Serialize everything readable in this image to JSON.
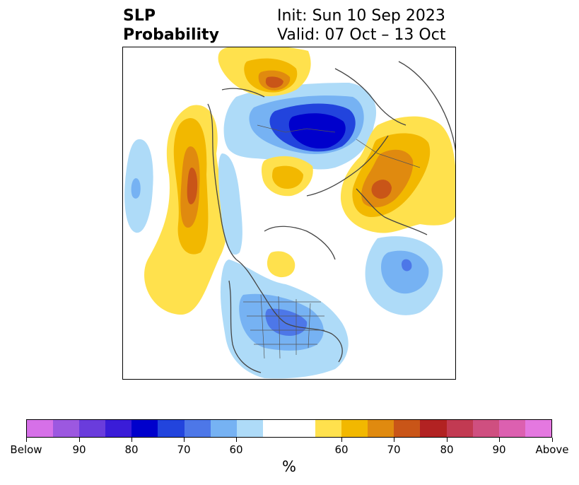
{
  "title": {
    "left_line1": "SLP",
    "left_line2": "Probability",
    "right_line1": "Init: Sun 10 Sep 2023",
    "right_line2": "Valid: 07 Oct – 13 Oct"
  },
  "colorbar": {
    "unit_label": "%",
    "segments": [
      {
        "color": "#d670e8"
      },
      {
        "color": "#9c58e0"
      },
      {
        "color": "#6a3cdc"
      },
      {
        "color": "#3a1cd8"
      },
      {
        "color": "#0000cc"
      },
      {
        "color": "#2244dd"
      },
      {
        "color": "#4d77e8"
      },
      {
        "color": "#76b2f3"
      },
      {
        "color": "#aedbf8"
      },
      {
        "color": "#ffffff",
        "wide": true
      },
      {
        "color": "#ffe14d"
      },
      {
        "color": "#f2b800"
      },
      {
        "color": "#e08a0f"
      },
      {
        "color": "#c95518"
      },
      {
        "color": "#b22222"
      },
      {
        "color": "#c23a52"
      },
      {
        "color": "#cf4f80"
      },
      {
        "color": "#dc60b0"
      },
      {
        "color": "#e478e0"
      }
    ],
    "tick_labels": [
      "Below",
      "90",
      "80",
      "70",
      "60",
      "60",
      "70",
      "80",
      "90",
      "Above"
    ]
  },
  "map": {
    "projection": "polar-stereographic-northern-hemisphere",
    "field": "sea-level-pressure-probability"
  }
}
